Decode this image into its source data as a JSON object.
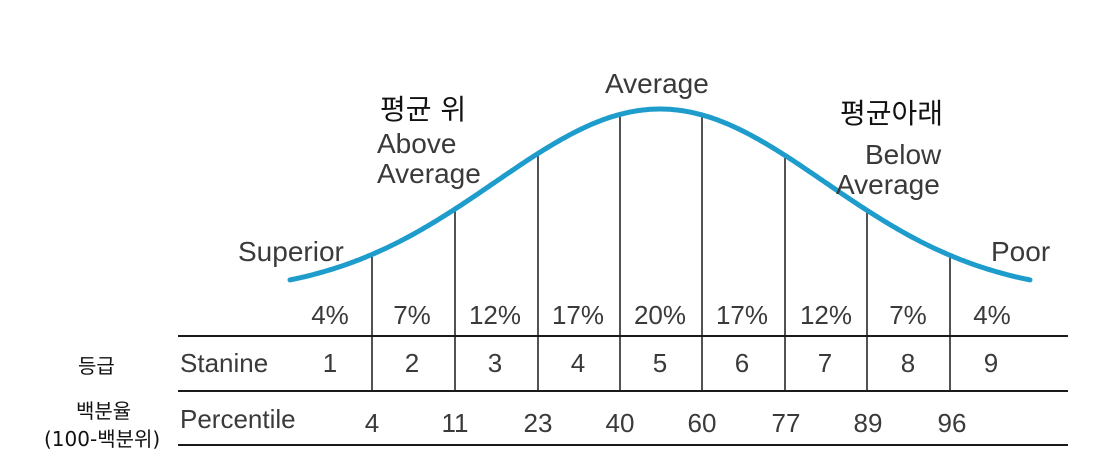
{
  "regions": {
    "superior": "Superior",
    "above_kr": "평균 위",
    "above_en_1": "Above",
    "above_en_2": "Average",
    "average": "Average",
    "below_kr": "평균아래",
    "below_en_1": "Below",
    "below_en_2": "Average",
    "poor": "Poor"
  },
  "percents": [
    "4%",
    "7%",
    "12%",
    "17%",
    "20%",
    "17%",
    "12%",
    "7%",
    "4%"
  ],
  "stanine": {
    "side_label": "등급",
    "row_label": "Stanine",
    "values": [
      "1",
      "2",
      "3",
      "4",
      "5",
      "6",
      "7",
      "8",
      "9"
    ]
  },
  "percentile": {
    "side_label_1": "백분율",
    "side_label_2": "(100-백분위)",
    "row_label": "Percentile",
    "values": [
      "4",
      "11",
      "23",
      "40",
      "60",
      "77",
      "89",
      "96"
    ]
  },
  "colors": {
    "curve": "#1e9ccc",
    "lines": "#1a1a1a"
  }
}
